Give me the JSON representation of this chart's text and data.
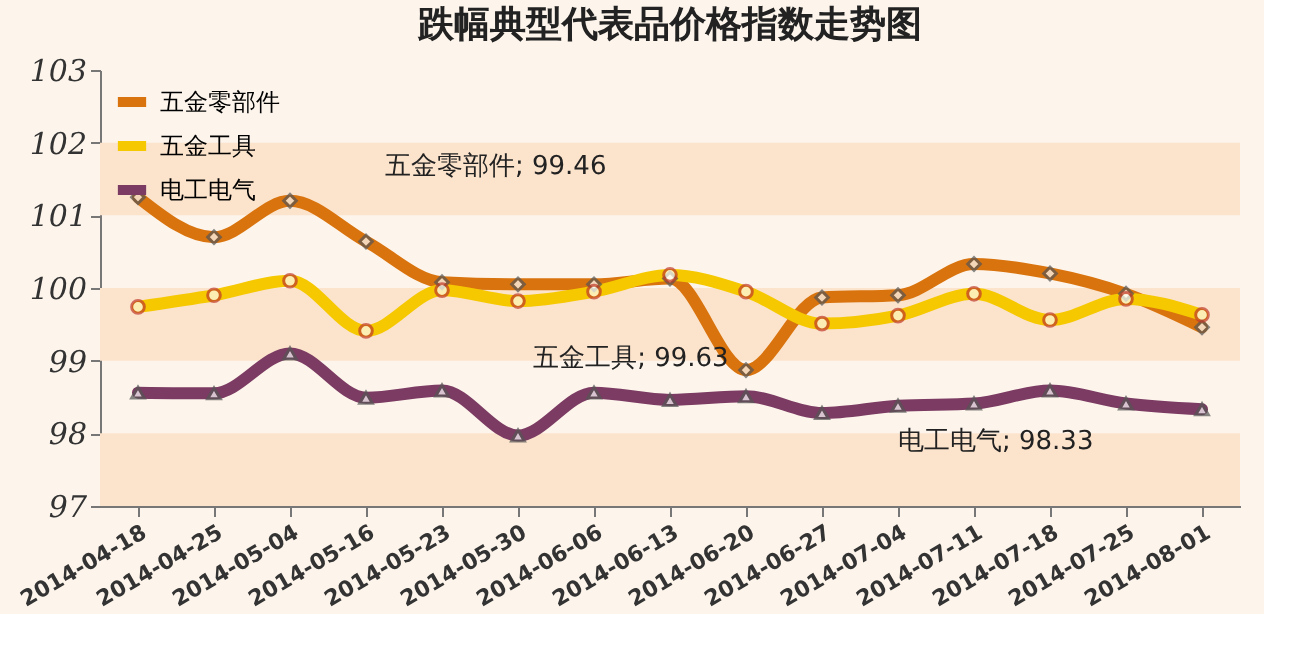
{
  "chart_data": {
    "type": "line",
    "title": "跌幅典型代表品价格指数走势图",
    "categories": [
      "2014-04-18",
      "2014-04-25",
      "2014-05-04",
      "2014-05-16",
      "2014-05-23",
      "2014-05-30",
      "2014-06-06",
      "2014-06-13",
      "2014-06-20",
      "2014-06-27",
      "2014-07-04",
      "2014-07-11",
      "2014-07-18",
      "2014-07-25",
      "2014-08-01"
    ],
    "series": [
      {
        "name": "五金零部件",
        "color": "#d9730d",
        "marker": "diamond",
        "values": [
          101.25,
          100.7,
          101.2,
          100.64,
          100.08,
          100.05,
          100.05,
          100.13,
          98.87,
          99.87,
          99.9,
          100.33,
          100.2,
          99.92,
          99.46
        ]
      },
      {
        "name": "五金工具",
        "color": "#f5c800",
        "marker": "circle",
        "values": [
          99.74,
          99.9,
          100.1,
          99.41,
          99.97,
          99.82,
          99.95,
          100.18,
          99.95,
          99.51,
          99.62,
          99.92,
          99.56,
          99.85,
          99.63
        ]
      },
      {
        "name": "电工电气",
        "color": "#7b3b62",
        "marker": "triangle",
        "values": [
          98.56,
          98.55,
          99.1,
          98.49,
          98.59,
          97.97,
          98.56,
          98.46,
          98.51,
          98.28,
          98.38,
          98.41,
          98.59,
          98.41,
          98.33
        ]
      }
    ],
    "ylim": [
      97,
      103
    ],
    "yticks": [
      97,
      98,
      99,
      100,
      101,
      102,
      103
    ],
    "bands": [
      {
        "axis": "y",
        "from": 97,
        "to": 98,
        "color": "#fbe3cc"
      },
      {
        "axis": "y",
        "from": 99,
        "to": 100,
        "color": "#fbe3cc"
      },
      {
        "axis": "y",
        "from": 101,
        "to": 102,
        "color": "#fbe3cc"
      }
    ],
    "legend": "top left",
    "line_style": "solid",
    "annotations": [
      "五金零部件; 99.46",
      "五金工具; 99.63",
      "电工电气; 98.33"
    ]
  }
}
